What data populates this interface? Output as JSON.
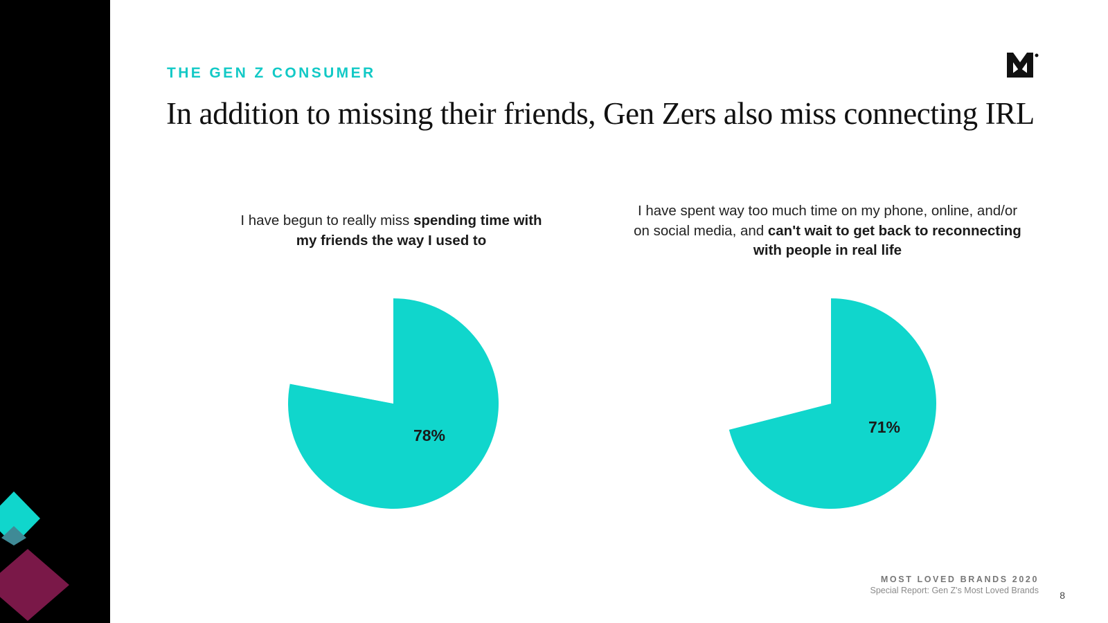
{
  "section_label": "THE GEN Z CONSUMER",
  "headline": "In addition to missing their friends, Gen Zers also miss connecting IRL",
  "questions": [
    {
      "text_plain": "I have begun to really miss ",
      "text_bold": "spending time with my friends the way I used to",
      "text_bold_end": ""
    },
    {
      "text_plain": "I have spent way too much time on my phone, online, and/or on social media, and ",
      "text_bold": "can't wait to get back to reconnecting with people in real life",
      "text_bold_end": ""
    }
  ],
  "chart_data": [
    {
      "type": "pie",
      "values": [
        78,
        22
      ],
      "labels": [
        "78%",
        ""
      ],
      "colors": [
        "#10d6cc",
        "#ffffff"
      ]
    },
    {
      "type": "pie",
      "values": [
        71,
        29
      ],
      "labels": [
        "71%",
        ""
      ],
      "colors": [
        "#10d6cc",
        "#ffffff"
      ]
    }
  ],
  "footer": {
    "brand": "MOST LOVED BRANDS 2020",
    "subtitle": "Special Report: Gen Z's Most Loved Brands",
    "page_number": "8"
  },
  "colors": {
    "accent": "#12c9c6",
    "pie_fill": "#10d6cc",
    "sidebar": "#000000",
    "decor_magenta": "#7a1848"
  },
  "icons": {
    "logo": "morning-consult-m-logo"
  }
}
